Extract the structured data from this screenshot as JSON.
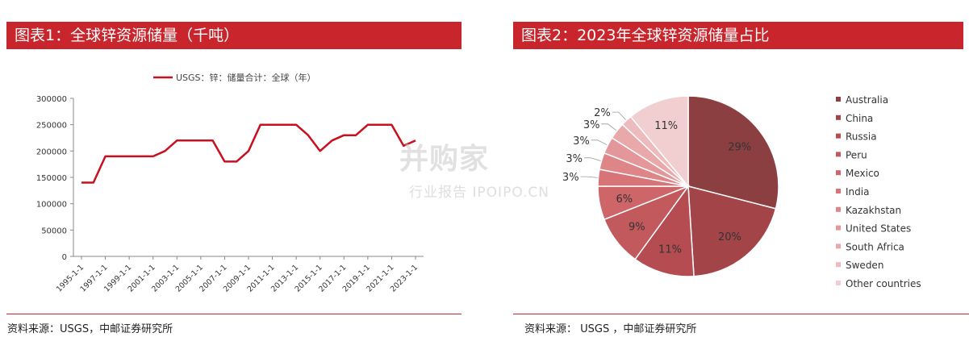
{
  "left": {
    "title": "图表1：全球锌资源储量（千吨）",
    "source": "资料来源：USGS，中邮证券研究所"
  },
  "right": {
    "title": "图表2：2023年全球锌资源储量占比",
    "source": "资料来源： USGS ，中邮证券研究所"
  },
  "watermark": {
    "main": "并购家",
    "sub": "行业报告 IPOIPO.CN"
  },
  "colors": {
    "title_bg": "#c8252c",
    "line": "#c8101e",
    "axis": "#888888"
  },
  "chart_data": [
    {
      "type": "line",
      "legend": "USGS：锌：储量合计：全球（年）",
      "legend_position": "top",
      "x": [
        "1995-1-1",
        "1996-1-1",
        "1997-1-1",
        "1998-1-1",
        "1999-1-1",
        "2000-1-1",
        "2001-1-1",
        "2002-1-1",
        "2003-1-1",
        "2004-1-1",
        "2005-1-1",
        "2006-1-1",
        "2007-1-1",
        "2008-1-1",
        "2009-1-1",
        "2010-1-1",
        "2011-1-1",
        "2012-1-1",
        "2013-1-1",
        "2014-1-1",
        "2015-1-1",
        "2016-1-1",
        "2017-1-1",
        "2018-1-1",
        "2019-1-1",
        "2020-1-1",
        "2021-1-1",
        "2022-1-1",
        "2023-1-1"
      ],
      "x_tick_labels": [
        "1995-1-1",
        "1997-1-1",
        "1999-1-1",
        "2001-1-1",
        "2003-1-1",
        "2005-1-1",
        "2007-1-1",
        "2009-1-1",
        "2011-1-1",
        "2013-1-1",
        "2015-1-1",
        "2017-1-1",
        "2019-1-1",
        "2021-1-1",
        "2023-1-1"
      ],
      "series": [
        {
          "values": [
            140000,
            140000,
            190000,
            190000,
            190000,
            190000,
            190000,
            200000,
            220000,
            220000,
            220000,
            220000,
            180000,
            180000,
            200000,
            250000,
            250000,
            250000,
            250000,
            230000,
            200000,
            220000,
            230000,
            230000,
            250000,
            250000,
            250000,
            210000,
            220000
          ]
        }
      ],
      "y_ticks": [
        0,
        50000,
        100000,
        150000,
        200000,
        250000,
        300000
      ],
      "ylim": [
        0,
        300000
      ],
      "grid": false
    },
    {
      "type": "pie",
      "legend_position": "right",
      "slices": [
        {
          "label": "Australia",
          "value": 29,
          "display": "29%",
          "color": "#8c3f41"
        },
        {
          "label": "China",
          "value": 20,
          "display": "20%",
          "color": "#a24448"
        },
        {
          "label": "Russia",
          "value": 11,
          "display": "11%",
          "color": "#b44c51"
        },
        {
          "label": "Peru",
          "value": 9,
          "display": "9%",
          "color": "#c2595d"
        },
        {
          "label": "Mexico",
          "value": 6,
          "display": "6%",
          "color": "#cd6569"
        },
        {
          "label": "India",
          "value": 3,
          "display": "3%",
          "color": "#d67477"
        },
        {
          "label": "Kazakhstan",
          "value": 3,
          "display": "3%",
          "color": "#de8588"
        },
        {
          "label": "United States",
          "value": 3,
          "display": "3%",
          "color": "#e4979a"
        },
        {
          "label": "South Africa",
          "value": 3,
          "display": "3%",
          "color": "#e9a9ab"
        },
        {
          "label": "Sweden",
          "value": 2,
          "display": "2%",
          "color": "#edbbbd"
        },
        {
          "label": "Other countries",
          "value": 11,
          "display": "11%",
          "color": "#f1cfd0"
        }
      ]
    }
  ]
}
